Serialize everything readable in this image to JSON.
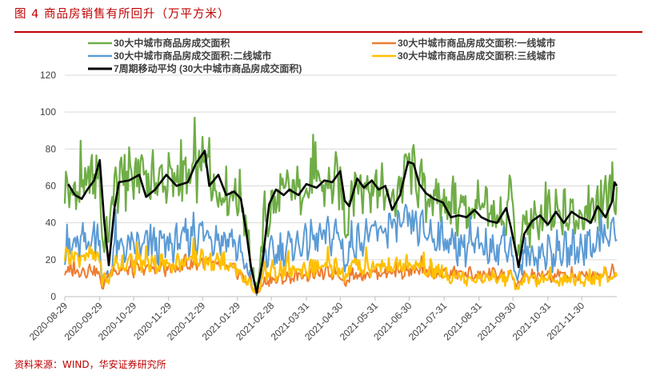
{
  "figure": {
    "title": "图 4   商品房销售有所回升（万平方米）",
    "source": "资料来源：WIND，华安证券研究所"
  },
  "colors": {
    "accent": "#c00000",
    "total": "#70ad47",
    "tier1": "#ed7d31",
    "tier2": "#5b9bd5",
    "tier3": "#ffc000",
    "ma7": "#000000"
  },
  "chart_data": {
    "type": "line",
    "title": "",
    "xlabel": "",
    "ylabel": "",
    "ylim": [
      0,
      120
    ],
    "yticks": [
      0,
      20,
      40,
      60,
      80,
      100,
      120
    ],
    "x_start": "2020-08-29",
    "x_end": "2021-12-31",
    "xticks": [
      "2020-08-29",
      "2020-09-29",
      "2020-10-29",
      "2020-11-29",
      "2020-12-29",
      "2021-01-29",
      "2021-02-28",
      "2021-03-31",
      "2021-04-30",
      "2021-05-31",
      "2021-06-30",
      "2021-07-31",
      "2021-08-31",
      "2021-09-30",
      "2021-10-31",
      "2021-11-30"
    ],
    "grid": true,
    "legend_position": "top",
    "series": [
      {
        "name": "30大中城市商品房成交面积",
        "key": "total",
        "kind": "daily",
        "knots": [
          [
            "2020-08-29",
            58
          ],
          [
            "2020-09-05",
            55
          ],
          [
            "2020-09-19",
            62
          ],
          [
            "2020-09-28",
            68
          ],
          [
            "2020-10-02",
            30
          ],
          [
            "2020-10-06",
            32
          ],
          [
            "2020-10-12",
            60
          ],
          [
            "2020-10-31",
            64
          ],
          [
            "2020-11-28",
            63
          ],
          [
            "2020-12-20",
            64
          ],
          [
            "2020-12-31",
            74
          ],
          [
            "2021-01-10",
            58
          ],
          [
            "2021-01-28",
            56
          ],
          [
            "2021-02-05",
            48
          ],
          [
            "2021-02-10",
            15
          ],
          [
            "2021-02-15",
            3
          ],
          [
            "2021-02-22",
            42
          ],
          [
            "2021-03-10",
            56
          ],
          [
            "2021-03-31",
            60
          ],
          [
            "2021-04-20",
            60
          ],
          [
            "2021-04-30",
            63
          ],
          [
            "2021-05-04",
            38
          ],
          [
            "2021-05-10",
            58
          ],
          [
            "2021-05-31",
            60
          ],
          [
            "2021-06-15",
            50
          ],
          [
            "2021-06-30",
            72
          ],
          [
            "2021-07-15",
            55
          ],
          [
            "2021-07-31",
            50
          ],
          [
            "2021-08-20",
            45
          ],
          [
            "2021-08-31",
            46
          ],
          [
            "2021-09-20",
            42
          ],
          [
            "2021-09-30",
            52
          ],
          [
            "2021-10-03",
            18
          ],
          [
            "2021-10-10",
            38
          ],
          [
            "2021-10-31",
            42
          ],
          [
            "2021-11-30",
            45
          ],
          [
            "2021-12-15",
            48
          ],
          [
            "2021-12-31",
            60
          ]
        ],
        "amplitude": 16
      },
      {
        "name": "30大中城市商品房成交面积:一线城市",
        "key": "tier1",
        "kind": "daily",
        "knots": [
          [
            "2020-08-29",
            13
          ],
          [
            "2020-09-25",
            15
          ],
          [
            "2020-10-02",
            5
          ],
          [
            "2020-10-08",
            14
          ],
          [
            "2020-11-30",
            15
          ],
          [
            "2020-12-31",
            19
          ],
          [
            "2021-01-28",
            14
          ],
          [
            "2021-02-10",
            6
          ],
          [
            "2021-02-15",
            1
          ],
          [
            "2021-02-22",
            8
          ],
          [
            "2021-03-31",
            12
          ],
          [
            "2021-04-30",
            13
          ],
          [
            "2021-05-04",
            7
          ],
          [
            "2021-05-10",
            12
          ],
          [
            "2021-06-30",
            14
          ],
          [
            "2021-07-31",
            13
          ],
          [
            "2021-08-31",
            12
          ],
          [
            "2021-09-30",
            11
          ],
          [
            "2021-10-03",
            5
          ],
          [
            "2021-10-10",
            11
          ],
          [
            "2021-11-30",
            11
          ],
          [
            "2021-12-31",
            14
          ]
        ],
        "amplitude": 4
      },
      {
        "name": "30大中城市商品房成交面积:二线城市",
        "key": "tier2",
        "kind": "daily",
        "knots": [
          [
            "2020-08-29",
            25
          ],
          [
            "2020-09-28",
            32
          ],
          [
            "2020-10-02",
            10
          ],
          [
            "2020-10-06",
            9
          ],
          [
            "2020-10-12",
            26
          ],
          [
            "2020-11-30",
            28
          ],
          [
            "2020-12-31",
            35
          ],
          [
            "2021-01-28",
            28
          ],
          [
            "2021-02-10",
            8
          ],
          [
            "2021-02-15",
            1
          ],
          [
            "2021-02-22",
            22
          ],
          [
            "2021-03-31",
            30
          ],
          [
            "2021-04-30",
            34
          ],
          [
            "2021-05-04",
            16
          ],
          [
            "2021-05-10",
            30
          ],
          [
            "2021-06-30",
            40
          ],
          [
            "2021-07-31",
            30
          ],
          [
            "2021-08-31",
            26
          ],
          [
            "2021-09-30",
            27
          ],
          [
            "2021-10-03",
            8
          ],
          [
            "2021-10-10",
            22
          ],
          [
            "2021-11-30",
            26
          ],
          [
            "2021-12-31",
            35
          ]
        ],
        "amplitude": 11
      },
      {
        "name": "30大中城市商品房成交面积:三线城市",
        "key": "tier3",
        "kind": "daily",
        "knots": [
          [
            "2020-08-29",
            22
          ],
          [
            "2020-09-28",
            22
          ],
          [
            "2020-10-02",
            8
          ],
          [
            "2020-10-06",
            8
          ],
          [
            "2020-10-12",
            18
          ],
          [
            "2020-11-30",
            18
          ],
          [
            "2020-12-31",
            20
          ],
          [
            "2021-01-28",
            15
          ],
          [
            "2021-02-10",
            6
          ],
          [
            "2021-02-15",
            1
          ],
          [
            "2021-02-22",
            13
          ],
          [
            "2021-03-31",
            15
          ],
          [
            "2021-04-30",
            16
          ],
          [
            "2021-05-04",
            9
          ],
          [
            "2021-05-10",
            16
          ],
          [
            "2021-06-30",
            17
          ],
          [
            "2021-07-31",
            12
          ],
          [
            "2021-08-31",
            10
          ],
          [
            "2021-09-30",
            10
          ],
          [
            "2021-10-03",
            4
          ],
          [
            "2021-10-10",
            9
          ],
          [
            "2021-11-30",
            9
          ],
          [
            "2021-12-31",
            12
          ]
        ],
        "amplitude": 6
      },
      {
        "name": "7周期移动平均 (30大中城市商品房成交面积)",
        "key": "ma7",
        "kind": "smooth",
        "knots": [
          [
            "2020-09-01",
            61
          ],
          [
            "2020-09-07",
            55
          ],
          [
            "2020-09-13",
            53
          ],
          [
            "2020-09-18",
            58
          ],
          [
            "2020-09-24",
            63
          ],
          [
            "2020-09-29",
            74
          ],
          [
            "2020-10-03",
            40
          ],
          [
            "2020-10-07",
            17
          ],
          [
            "2020-10-12",
            48
          ],
          [
            "2020-10-16",
            62
          ],
          [
            "2020-10-25",
            63
          ],
          [
            "2020-11-03",
            66
          ],
          [
            "2020-11-09",
            54
          ],
          [
            "2020-11-17",
            58
          ],
          [
            "2020-11-27",
            66
          ],
          [
            "2020-12-06",
            60
          ],
          [
            "2020-12-16",
            62
          ],
          [
            "2020-12-23",
            72
          ],
          [
            "2020-12-31",
            79
          ],
          [
            "2021-01-04",
            60
          ],
          [
            "2021-01-12",
            66
          ],
          [
            "2021-01-19",
            55
          ],
          [
            "2021-01-26",
            57
          ],
          [
            "2021-02-01",
            53
          ],
          [
            "2021-02-06",
            34
          ],
          [
            "2021-02-10",
            16
          ],
          [
            "2021-02-15",
            2
          ],
          [
            "2021-02-20",
            18
          ],
          [
            "2021-02-26",
            50
          ],
          [
            "2021-03-04",
            58
          ],
          [
            "2021-03-11",
            55
          ],
          [
            "2021-03-16",
            58
          ],
          [
            "2021-03-24",
            55
          ],
          [
            "2021-03-31",
            61
          ],
          [
            "2021-04-09",
            59
          ],
          [
            "2021-04-16",
            63
          ],
          [
            "2021-04-23",
            62
          ],
          [
            "2021-04-30",
            68
          ],
          [
            "2021-05-04",
            52
          ],
          [
            "2021-05-08",
            49
          ],
          [
            "2021-05-15",
            64
          ],
          [
            "2021-05-21",
            59
          ],
          [
            "2021-05-28",
            63
          ],
          [
            "2021-06-03",
            58
          ],
          [
            "2021-06-09",
            60
          ],
          [
            "2021-06-15",
            47
          ],
          [
            "2021-06-22",
            55
          ],
          [
            "2021-06-29",
            73
          ],
          [
            "2021-07-04",
            72
          ],
          [
            "2021-07-09",
            61
          ],
          [
            "2021-07-15",
            56
          ],
          [
            "2021-07-22",
            53
          ],
          [
            "2021-07-30",
            51
          ],
          [
            "2021-08-06",
            43
          ],
          [
            "2021-08-13",
            44
          ],
          [
            "2021-08-20",
            43
          ],
          [
            "2021-08-27",
            47
          ],
          [
            "2021-09-02",
            43
          ],
          [
            "2021-09-09",
            41
          ],
          [
            "2021-09-16",
            40
          ],
          [
            "2021-09-24",
            48
          ],
          [
            "2021-09-28",
            38
          ],
          [
            "2021-10-03",
            23
          ],
          [
            "2021-10-05",
            16
          ],
          [
            "2021-10-10",
            34
          ],
          [
            "2021-10-17",
            41
          ],
          [
            "2021-10-24",
            44
          ],
          [
            "2021-10-31",
            39
          ],
          [
            "2021-11-07",
            46
          ],
          [
            "2021-11-14",
            40
          ],
          [
            "2021-11-21",
            46
          ],
          [
            "2021-11-28",
            43
          ],
          [
            "2021-12-03",
            42
          ],
          [
            "2021-12-08",
            40
          ],
          [
            "2021-12-14",
            49
          ],
          [
            "2021-12-21",
            43
          ],
          [
            "2021-12-27",
            52
          ],
          [
            "2021-12-29",
            62
          ],
          [
            "2021-12-31",
            60
          ]
        ],
        "amplitude": 0
      }
    ]
  }
}
